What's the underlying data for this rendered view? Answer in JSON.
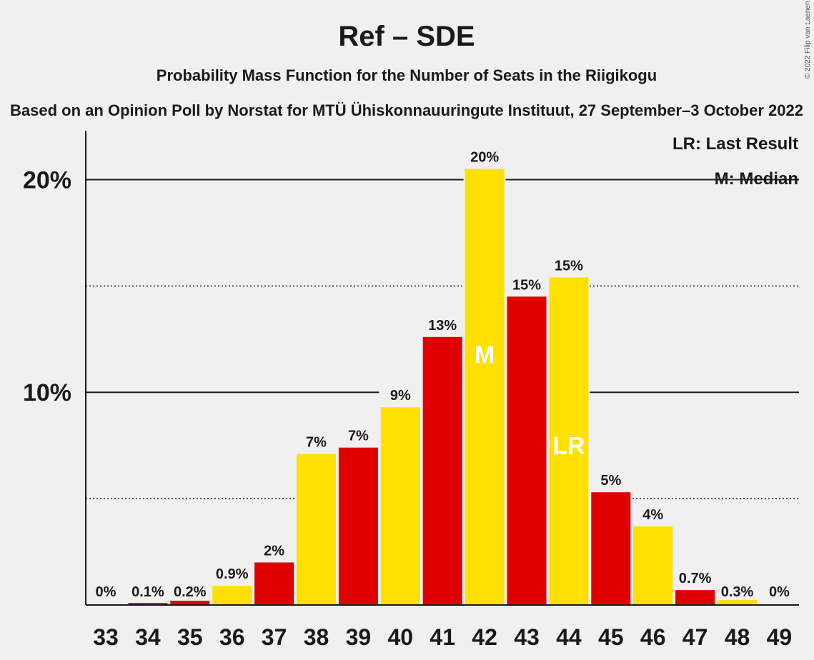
{
  "header": {
    "title": "Ref – SDE",
    "subtitle": "Probability Mass Function for the Number of Seats in the Riigikogu",
    "source": "Based on an Opinion Poll by Norstat for MTÜ Ühiskonnauuringute Instituut, 27 September–3 October 2022",
    "copyright": "© 2022 Filip van Laenen"
  },
  "legend": {
    "last_result": "LR: Last Result",
    "median": "M: Median"
  },
  "colors": {
    "red": "#e00000",
    "yellow": "#ffe000",
    "background": "#f0f0f0",
    "text": "#1a1a1a"
  },
  "chart_data": {
    "type": "bar",
    "title": "Ref – SDE",
    "subtitle": "Probability Mass Function for the Number of Seats in the Riigikogu",
    "categories": [
      "33",
      "34",
      "35",
      "36",
      "37",
      "38",
      "39",
      "40",
      "41",
      "42",
      "43",
      "44",
      "45",
      "46",
      "47",
      "48",
      "49"
    ],
    "values": [
      0,
      0.1,
      0.2,
      0.9,
      2.0,
      7.1,
      7.4,
      9.3,
      12.6,
      20.5,
      14.5,
      15.4,
      5.3,
      3.7,
      0.7,
      0.3,
      0
    ],
    "labels": [
      "0%",
      "0.1%",
      "0.2%",
      "0.9%",
      "2%",
      "7%",
      "7%",
      "9%",
      "13%",
      "20%",
      "15%",
      "15%",
      "5%",
      "4%",
      "0.7%",
      "0.3%",
      "0%"
    ],
    "bar_colors": [
      "red",
      "red",
      "red",
      "yellow",
      "red",
      "yellow",
      "red",
      "yellow",
      "red",
      "yellow",
      "red",
      "yellow",
      "red",
      "yellow",
      "red",
      "yellow",
      "red"
    ],
    "yticks": [
      {
        "value": 10,
        "label": "10%"
      },
      {
        "value": 20,
        "label": "20%"
      }
    ],
    "dotted_lines": [
      5,
      15
    ],
    "ylim": [
      0,
      22.3
    ],
    "markers": [
      {
        "category": "42",
        "text": "M"
      },
      {
        "category": "44",
        "text": "LR"
      }
    ],
    "xlabel": "",
    "ylabel": ""
  }
}
